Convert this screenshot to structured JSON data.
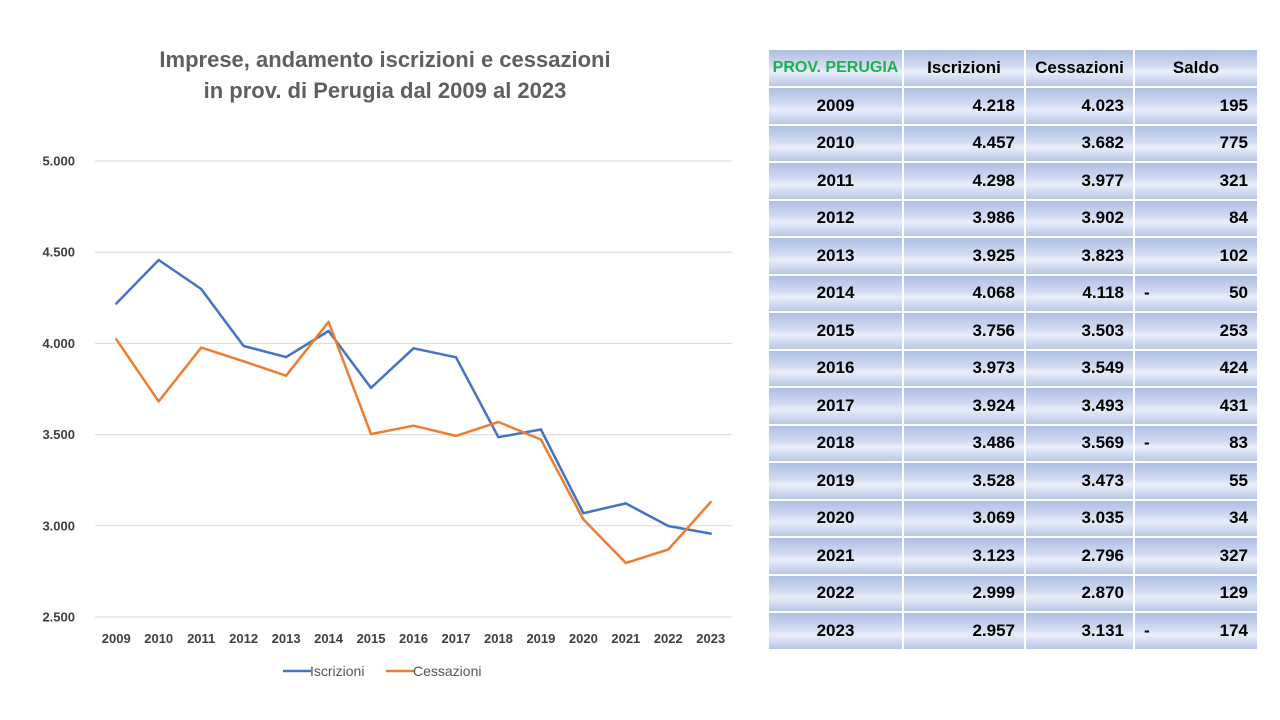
{
  "chart_data": {
    "type": "line",
    "title": "Imprese, andamento iscrizioni e cessazioni in prov. di Perugia dal 2009 al 2023",
    "title_lines": [
      "Imprese, andamento iscrizioni e cessazioni",
      "in prov. di Perugia dal 2009 al 2023"
    ],
    "categories": [
      "2009",
      "2010",
      "2011",
      "2012",
      "2013",
      "2014",
      "2015",
      "2016",
      "2017",
      "2018",
      "2019",
      "2020",
      "2021",
      "2022",
      "2023"
    ],
    "series": [
      {
        "name": "Iscrizioni",
        "color": "#4472c4",
        "values": [
          4218,
          4457,
          4298,
          3986,
          3925,
          4068,
          3756,
          3973,
          3924,
          3486,
          3528,
          3069,
          3123,
          2999,
          2957
        ]
      },
      {
        "name": "Cessazioni",
        "color": "#ed7d31",
        "values": [
          4023,
          3682,
          3977,
          3902,
          3823,
          4118,
          3503,
          3549,
          3493,
          3569,
          3473,
          3035,
          2796,
          2870,
          3131
        ]
      }
    ],
    "y_ticks": [
      "5.000",
      "4.500",
      "4.000",
      "3.500",
      "3.000",
      "2.500"
    ],
    "ylim": [
      2500,
      5000
    ],
    "grid": true,
    "legend_position": "bottom"
  },
  "table": {
    "headers": [
      "PROV. PERUGIA",
      "Iscrizioni",
      "Cessazioni",
      "Saldo"
    ],
    "rows": [
      {
        "year": "2009",
        "iscrizioni": "4.218",
        "cessazioni": "4.023",
        "saldo": "195",
        "negative": false
      },
      {
        "year": "2010",
        "iscrizioni": "4.457",
        "cessazioni": "3.682",
        "saldo": "775",
        "negative": false
      },
      {
        "year": "2011",
        "iscrizioni": "4.298",
        "cessazioni": "3.977",
        "saldo": "321",
        "negative": false
      },
      {
        "year": "2012",
        "iscrizioni": "3.986",
        "cessazioni": "3.902",
        "saldo": "84",
        "negative": false
      },
      {
        "year": "2013",
        "iscrizioni": "3.925",
        "cessazioni": "3.823",
        "saldo": "102",
        "negative": false
      },
      {
        "year": "2014",
        "iscrizioni": "4.068",
        "cessazioni": "4.118",
        "saldo": "50",
        "negative": true
      },
      {
        "year": "2015",
        "iscrizioni": "3.756",
        "cessazioni": "3.503",
        "saldo": "253",
        "negative": false
      },
      {
        "year": "2016",
        "iscrizioni": "3.973",
        "cessazioni": "3.549",
        "saldo": "424",
        "negative": false
      },
      {
        "year": "2017",
        "iscrizioni": "3.924",
        "cessazioni": "3.493",
        "saldo": "431",
        "negative": false
      },
      {
        "year": "2018",
        "iscrizioni": "3.486",
        "cessazioni": "3.569",
        "saldo": "83",
        "negative": true
      },
      {
        "year": "2019",
        "iscrizioni": "3.528",
        "cessazioni": "3.473",
        "saldo": "55",
        "negative": false
      },
      {
        "year": "2020",
        "iscrizioni": "3.069",
        "cessazioni": "3.035",
        "saldo": "34",
        "negative": false
      },
      {
        "year": "2021",
        "iscrizioni": "3.123",
        "cessazioni": "2.796",
        "saldo": "327",
        "negative": false
      },
      {
        "year": "2022",
        "iscrizioni": "2.999",
        "cessazioni": "2.870",
        "saldo": "129",
        "negative": false
      },
      {
        "year": "2023",
        "iscrizioni": "2.957",
        "cessazioni": "3.131",
        "saldo": "174",
        "negative": true
      }
    ]
  }
}
